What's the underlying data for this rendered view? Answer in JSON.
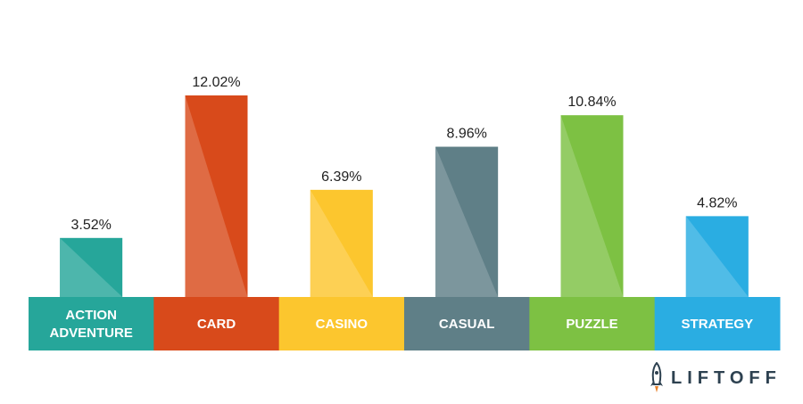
{
  "chart_data": {
    "type": "bar",
    "categories": [
      [
        "ACTION",
        "ADVENTURE"
      ],
      [
        "CARD"
      ],
      [
        "CASINO"
      ],
      [
        "CASUAL"
      ],
      [
        "PUZZLE"
      ],
      [
        "STRATEGY"
      ]
    ],
    "values": [
      3.52,
      12.02,
      6.39,
      8.96,
      10.84,
      4.82
    ],
    "value_labels": [
      "3.52%",
      "12.02%",
      "6.39%",
      "8.96%",
      "10.84%",
      "4.82%"
    ],
    "colors": [
      "#26a69a",
      "#d84a1b",
      "#fcc62e",
      "#5f7f87",
      "#7dc143",
      "#2aade2"
    ],
    "ylim": [
      0,
      12.02
    ],
    "grid": false,
    "legend": "none"
  },
  "brand": {
    "name": "LIFTOFF",
    "icon": "rocket-icon"
  }
}
